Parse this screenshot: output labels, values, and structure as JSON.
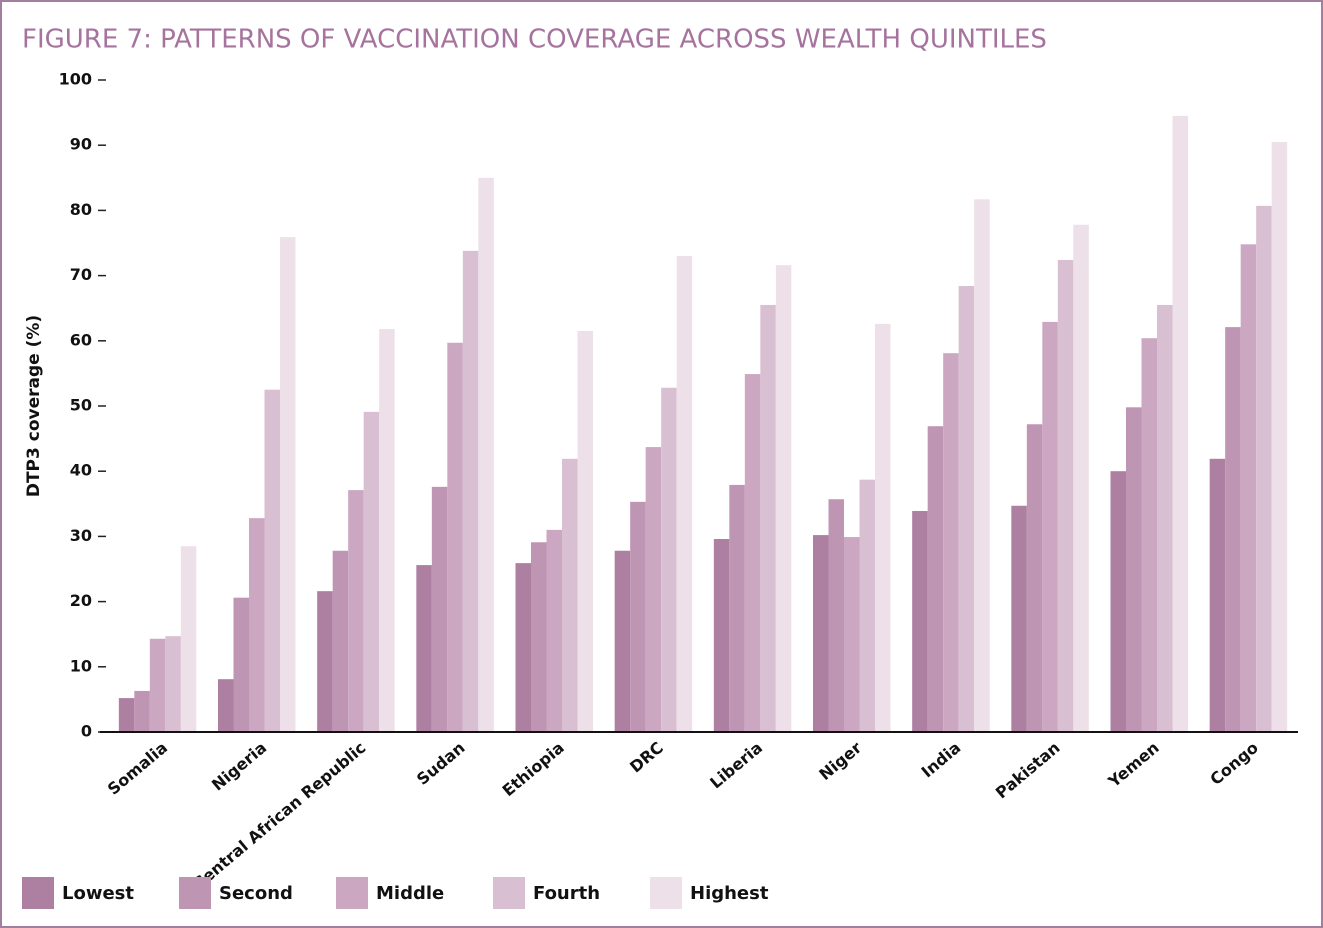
{
  "chart_data": {
    "type": "bar",
    "title": "FIGURE 7: PATTERNS OF VACCINATION COVERAGE ACROSS WEALTH QUINTILES",
    "y_label": "DTP3 coverage (%)",
    "categories": [
      "Somalia",
      "Nigeria",
      "Central African Republic",
      "Sudan",
      "Ethiopia",
      "DRC",
      "Liberia",
      "Niger",
      "India",
      "Pakistan",
      "Yemen",
      "Congo"
    ],
    "series": [
      {
        "name": "Lowest",
        "color": "#ad7fa0",
        "values": [
          5.2,
          8.1,
          21.6,
          25.6,
          25.9,
          27.8,
          29.6,
          30.2,
          33.9,
          34.7,
          40,
          41.9
        ]
      },
      {
        "name": "Second",
        "color": "#bf95b4",
        "values": [
          6.3,
          20.6,
          27.8,
          37.6,
          29.1,
          35.3,
          37.9,
          35.7,
          46.9,
          47.2,
          49.8,
          62.1
        ]
      },
      {
        "name": "Middle",
        "color": "#cba7c2",
        "values": [
          14.3,
          32.8,
          37.1,
          59.7,
          31,
          43.7,
          54.9,
          29.9,
          58.1,
          62.9,
          60.4,
          74.8
        ]
      },
      {
        "name": "Fourth",
        "color": "#d9bfd2",
        "values": [
          14.7,
          52.5,
          49.1,
          73.8,
          41.9,
          52.8,
          65.5,
          38.7,
          68.4,
          72.4,
          65.5,
          80.7
        ]
      },
      {
        "name": "Highest",
        "color": "#ede0e8",
        "values": [
          28.5,
          75.9,
          61.8,
          85,
          61.5,
          73,
          71.6,
          62.6,
          81.7,
          77.8,
          94.5,
          90.5
        ]
      }
    ],
    "ylim": [
      0,
      100
    ],
    "yticks": [
      0,
      10,
      20,
      30,
      40,
      50,
      60,
      70,
      80,
      90,
      100
    ]
  }
}
